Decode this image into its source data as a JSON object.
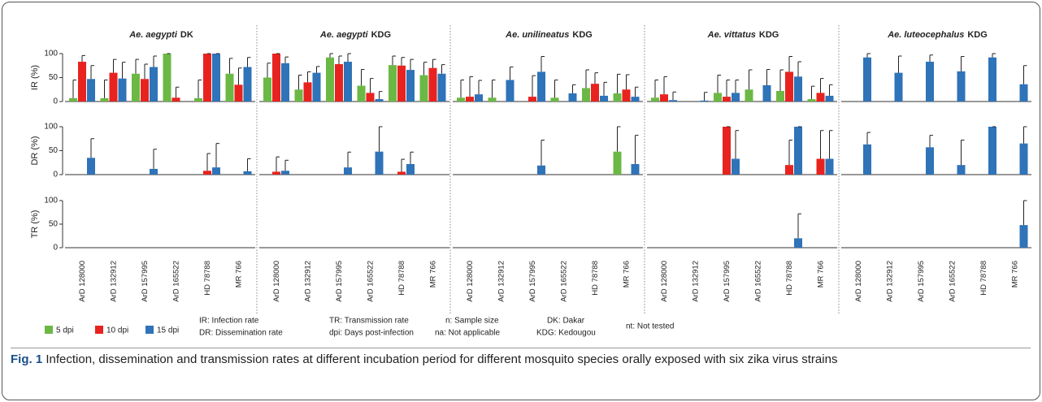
{
  "axes": {
    "row_labels": [
      "IR (%)",
      "DR (%)",
      "TR (%)"
    ],
    "ylim": [
      0,
      100
    ],
    "yticks": [
      0,
      50,
      100
    ]
  },
  "legend": [
    {
      "name": "5 dpi",
      "color": "#6cb845"
    },
    {
      "name": "10 dpi",
      "color": "#e8231f"
    },
    {
      "name": "15 dpi",
      "color": "#2f73b8"
    }
  ],
  "notes": [
    "IR: Infection rate",
    "DR: Dissemination rate",
    "TR: Transmission rate",
    "dpi: Days post-infection",
    "n: Sample size",
    "na: Not applicable",
    "DK: Dakar",
    "KDG: Kedougou",
    "nt: Not tested"
  ],
  "caption": {
    "label": "Fig. 1",
    "text": "Infection, dissemination and transmission rates at different incubation period for different mosquito species orally exposed with six zika virus strains"
  },
  "chart_data": [
    {
      "type": "bar",
      "species": "Ae. aegypti",
      "site": "DK",
      "categories": [
        "ArD 128000",
        "ArD 132912",
        "ArD 157995",
        "ArD 165522",
        "HD 78788",
        "MR 766"
      ],
      "rows": [
        {
          "series": [
            {
              "values": [
                7,
                7,
                58,
                100,
                7,
                58
              ],
              "upper": [
                45,
                45,
                88,
                100,
                45,
                90
              ]
            },
            {
              "values": [
                83,
                60,
                47,
                8,
                100,
                35
              ],
              "upper": [
                96,
                88,
                78,
                30,
                100,
                70
              ]
            },
            {
              "values": [
                47,
                48,
                72,
                0,
                100,
                72
              ],
              "upper": [
                75,
                82,
                95,
                null,
                100,
                92
              ]
            }
          ]
        },
        {
          "series": [
            {
              "values": [
                0,
                0,
                0,
                0,
                0,
                0
              ],
              "upper": [
                null,
                null,
                null,
                null,
                null,
                null
              ]
            },
            {
              "values": [
                0,
                0,
                0,
                0,
                8,
                0
              ],
              "upper": [
                null,
                null,
                null,
                null,
                44,
                null
              ]
            },
            {
              "values": [
                35,
                0,
                12,
                0,
                15,
                7
              ],
              "upper": [
                75,
                null,
                53,
                null,
                65,
                33
              ]
            }
          ]
        },
        {
          "series": [
            {
              "values": [
                0,
                0,
                0,
                0,
                0,
                0
              ],
              "upper": [
                null,
                null,
                null,
                null,
                null,
                null
              ]
            },
            {
              "values": [
                0,
                0,
                0,
                0,
                0,
                0
              ],
              "upper": [
                null,
                null,
                null,
                null,
                null,
                null
              ]
            },
            {
              "values": [
                0,
                0,
                0,
                0,
                0,
                0
              ],
              "upper": [
                null,
                null,
                null,
                null,
                null,
                null
              ]
            }
          ]
        }
      ]
    },
    {
      "type": "bar",
      "species": "Ae. aegypti",
      "site": "KDG",
      "categories": [
        "ArD 128000",
        "ArD 132912",
        "ArD 157995",
        "ArD 165522",
        "HD 78788",
        "MR 766"
      ],
      "rows": [
        {
          "series": [
            {
              "values": [
                50,
                25,
                92,
                33,
                76,
                55
              ],
              "upper": [
                80,
                55,
                100,
                67,
                95,
                82
              ]
            },
            {
              "values": [
                100,
                40,
                78,
                18,
                75,
                70
              ],
              "upper": [
                100,
                62,
                95,
                48,
                92,
                88
              ]
            },
            {
              "values": [
                80,
                60,
                83,
                5,
                66,
                58
              ],
              "upper": [
                93,
                73,
                100,
                21,
                88,
                77
              ]
            }
          ]
        },
        {
          "series": [
            {
              "values": [
                0,
                0,
                0,
                0,
                0,
                0
              ],
              "upper": [
                null,
                null,
                null,
                null,
                null,
                null
              ]
            },
            {
              "values": [
                6,
                0,
                0,
                0,
                6,
                0
              ],
              "upper": [
                37,
                null,
                null,
                null,
                32,
                null
              ]
            },
            {
              "values": [
                8,
                0,
                15,
                48,
                22,
                0
              ],
              "upper": [
                30,
                null,
                47,
                100,
                47,
                null
              ]
            }
          ]
        },
        {
          "series": [
            {
              "values": [
                0,
                0,
                0,
                0,
                0,
                0
              ],
              "upper": [
                null,
                null,
                null,
                null,
                null,
                null
              ]
            },
            {
              "values": [
                0,
                0,
                0,
                0,
                0,
                0
              ],
              "upper": [
                null,
                null,
                null,
                null,
                null,
                null
              ]
            },
            {
              "values": [
                0,
                0,
                0,
                0,
                0,
                0
              ],
              "upper": [
                null,
                null,
                null,
                null,
                null,
                null
              ]
            }
          ]
        }
      ]
    },
    {
      "type": "bar",
      "species": "Ae. unilineatus",
      "site": "KDG",
      "categories": [
        "ArD 128000",
        "ArD 132912",
        "ArD 157995",
        "ArD 165522",
        "HD 78788",
        "MR 766"
      ],
      "rows": [
        {
          "series": [
            {
              "values": [
                8,
                8,
                0,
                8,
                28,
                17
              ],
              "upper": [
                45,
                45,
                null,
                45,
                66,
                57
              ]
            },
            {
              "values": [
                10,
                0,
                10,
                0,
                37,
                25
              ],
              "upper": [
                52,
                null,
                54,
                null,
                60,
                56
              ]
            },
            {
              "values": [
                15,
                45,
                62,
                17,
                12,
                10
              ],
              "upper": [
                44,
                72,
                94,
                35,
                40,
                30
              ]
            }
          ]
        },
        {
          "series": [
            {
              "values": [
                0,
                0,
                0,
                0,
                0,
                48
              ],
              "upper": [
                null,
                null,
                null,
                null,
                null,
                100
              ]
            },
            {
              "values": [
                0,
                0,
                0,
                0,
                0,
                0
              ],
              "upper": [
                null,
                null,
                null,
                null,
                null,
                null
              ]
            },
            {
              "values": [
                0,
                0,
                19,
                0,
                0,
                22
              ],
              "upper": [
                null,
                null,
                72,
                null,
                null,
                82
              ]
            }
          ]
        },
        {
          "series": [
            {
              "values": [
                0,
                0,
                0,
                0,
                0,
                0
              ],
              "upper": [
                null,
                null,
                null,
                null,
                null,
                null
              ]
            },
            {
              "values": [
                0,
                0,
                0,
                0,
                0,
                0
              ],
              "upper": [
                null,
                null,
                null,
                null,
                null,
                null
              ]
            },
            {
              "values": [
                0,
                0,
                0,
                0,
                0,
                0
              ],
              "upper": [
                null,
                null,
                null,
                null,
                null,
                null
              ]
            }
          ]
        }
      ]
    },
    {
      "type": "bar",
      "species": "Ae. vittatus",
      "site": "KDG",
      "categories": [
        "ArD 128000",
        "ArD 132912",
        "ArD 157995",
        "ArD 165522",
        "HD 78788",
        "MR 766"
      ],
      "rows": [
        {
          "series": [
            {
              "values": [
                8,
                0,
                18,
                25,
                22,
                5
              ],
              "upper": [
                45,
                null,
                55,
                66,
                66,
                32
              ]
            },
            {
              "values": [
                15,
                0,
                10,
                0,
                62,
                18
              ],
              "upper": [
                52,
                null,
                45,
                null,
                94,
                48
              ]
            },
            {
              "values": [
                3,
                2,
                18,
                34,
                52,
                12
              ],
              "upper": [
                20,
                19,
                45,
                67,
                83,
                35
              ]
            }
          ]
        },
        {
          "series": [
            {
              "values": [
                0,
                0,
                0,
                0,
                0,
                0
              ],
              "upper": [
                null,
                null,
                null,
                null,
                null,
                null
              ]
            },
            {
              "values": [
                0,
                0,
                100,
                0,
                20,
                33
              ],
              "upper": [
                null,
                null,
                100,
                null,
                72,
                92
              ]
            },
            {
              "values": [
                0,
                0,
                33,
                0,
                100,
                33
              ],
              "upper": [
                null,
                null,
                92,
                null,
                100,
                92
              ]
            }
          ]
        },
        {
          "series": [
            {
              "values": [
                0,
                0,
                0,
                0,
                0,
                0
              ],
              "upper": [
                null,
                null,
                null,
                null,
                null,
                null
              ]
            },
            {
              "values": [
                0,
                0,
                0,
                0,
                0,
                0
              ],
              "upper": [
                null,
                null,
                null,
                null,
                null,
                null
              ]
            },
            {
              "values": [
                0,
                0,
                0,
                0,
                20,
                0
              ],
              "upper": [
                null,
                null,
                null,
                null,
                72,
                null
              ]
            }
          ]
        }
      ]
    },
    {
      "type": "bar",
      "species": "Ae. luteocephalus",
      "site": "KDG",
      "categories": [
        "ArD 128000",
        "ArD 132912",
        "ArD 157995",
        "ArD 165522",
        "HD 78788",
        "MR 766"
      ],
      "rows": [
        {
          "series": [
            {
              "values": [
                0,
                0,
                0,
                0,
                0,
                0
              ],
              "upper": [
                null,
                null,
                null,
                null,
                null,
                null
              ]
            },
            {
              "values": [
                0,
                0,
                0,
                0,
                0,
                0
              ],
              "upper": [
                null,
                null,
                null,
                null,
                null,
                null
              ]
            },
            {
              "values": [
                92,
                60,
                83,
                63,
                92,
                36
              ],
              "upper": [
                100,
                95,
                97,
                94,
                100,
                75
              ]
            }
          ]
        },
        {
          "series": [
            {
              "values": [
                0,
                0,
                0,
                0,
                0,
                0
              ],
              "upper": [
                null,
                null,
                null,
                null,
                null,
                null
              ]
            },
            {
              "values": [
                0,
                0,
                0,
                0,
                0,
                0
              ],
              "upper": [
                null,
                null,
                null,
                null,
                null,
                null
              ]
            },
            {
              "values": [
                63,
                0,
                57,
                20,
                100,
                65
              ],
              "upper": [
                88,
                null,
                82,
                72,
                100,
                100
              ]
            }
          ]
        },
        {
          "series": [
            {
              "values": [
                0,
                0,
                0,
                0,
                0,
                0
              ],
              "upper": [
                null,
                null,
                null,
                null,
                null,
                null
              ]
            },
            {
              "values": [
                0,
                0,
                0,
                0,
                0,
                0
              ],
              "upper": [
                null,
                null,
                null,
                null,
                null,
                null
              ]
            },
            {
              "values": [
                0,
                0,
                0,
                0,
                0,
                48
              ],
              "upper": [
                null,
                null,
                null,
                null,
                null,
                100
              ]
            }
          ]
        }
      ]
    }
  ]
}
